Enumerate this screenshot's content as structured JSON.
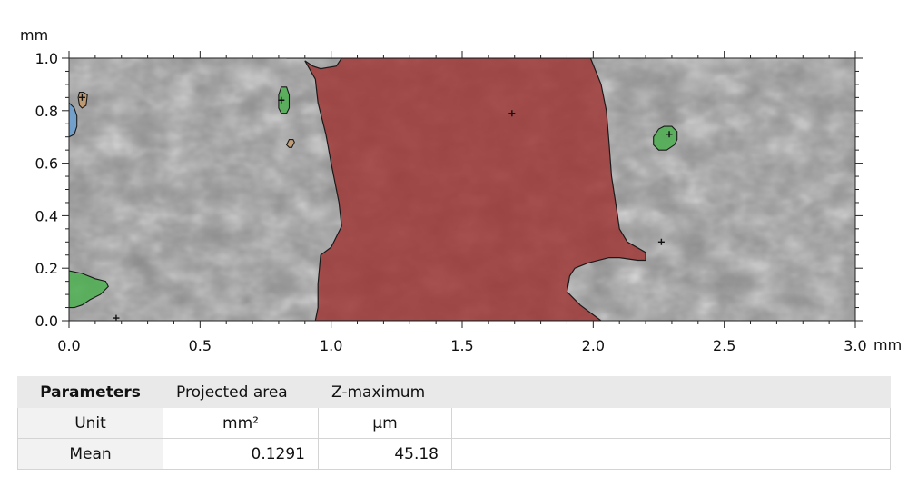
{
  "chart_data": {
    "type": "heatmap",
    "x_unit": "mm",
    "y_unit": "mm",
    "xlim": [
      0.0,
      3.0
    ],
    "ylim": [
      0.0,
      1.0
    ],
    "x_ticks": [
      "0.0",
      "0.5",
      "1.0",
      "1.5",
      "2.0",
      "2.5",
      "3.0"
    ],
    "y_ticks": [
      "0.0",
      "0.2",
      "0.4",
      "0.6",
      "0.8",
      "1.0"
    ],
    "background": "grayscale height map",
    "selected_region": {
      "color": "#9e3535",
      "outline": [
        [
          0.83,
          1.0
        ],
        [
          1.04,
          1.0
        ],
        [
          1.02,
          0.97
        ],
        [
          0.96,
          0.96
        ],
        [
          0.93,
          0.97
        ],
        [
          0.9,
          0.99
        ],
        [
          0.94,
          0.92
        ],
        [
          0.95,
          0.83
        ],
        [
          0.98,
          0.71
        ],
        [
          1.0,
          0.6
        ],
        [
          1.03,
          0.45
        ],
        [
          1.04,
          0.36
        ],
        [
          1.0,
          0.28
        ],
        [
          0.96,
          0.25
        ],
        [
          0.95,
          0.14
        ],
        [
          0.95,
          0.05
        ],
        [
          0.94,
          0.0
        ],
        [
          2.03,
          0.0
        ],
        [
          1.95,
          0.06
        ],
        [
          1.9,
          0.11
        ],
        [
          1.91,
          0.17
        ],
        [
          1.93,
          0.2
        ],
        [
          1.98,
          0.22
        ],
        [
          2.06,
          0.24
        ],
        [
          2.1,
          0.24
        ],
        [
          2.17,
          0.23
        ],
        [
          2.2,
          0.23
        ],
        [
          2.2,
          0.26
        ],
        [
          2.13,
          0.3
        ],
        [
          2.1,
          0.35
        ],
        [
          2.09,
          0.42
        ],
        [
          2.07,
          0.55
        ],
        [
          2.06,
          0.68
        ],
        [
          2.05,
          0.8
        ],
        [
          2.03,
          0.9
        ],
        [
          1.99,
          1.0
        ]
      ],
      "markers": [
        [
          1.69,
          0.79
        ]
      ]
    },
    "islands": [
      {
        "color": "#4caf50",
        "outline": [
          [
            2.23,
            0.7
          ],
          [
            2.25,
            0.73
          ],
          [
            2.27,
            0.74
          ],
          [
            2.3,
            0.74
          ],
          [
            2.32,
            0.72
          ],
          [
            2.32,
            0.69
          ],
          [
            2.31,
            0.67
          ],
          [
            2.28,
            0.65
          ],
          [
            2.25,
            0.65
          ],
          [
            2.23,
            0.67
          ]
        ],
        "markers": [
          [
            2.29,
            0.71
          ]
        ]
      },
      {
        "color": "#4caf50",
        "outline": [
          [
            0.0,
            0.19
          ],
          [
            0.05,
            0.18
          ],
          [
            0.1,
            0.16
          ],
          [
            0.14,
            0.15
          ],
          [
            0.15,
            0.13
          ],
          [
            0.12,
            0.1
          ],
          [
            0.08,
            0.08
          ],
          [
            0.05,
            0.06
          ],
          [
            0.02,
            0.05
          ],
          [
            0.0,
            0.05
          ]
        ],
        "markers": []
      },
      {
        "color": "#4caf50",
        "outline": [
          [
            0.81,
            0.89
          ],
          [
            0.83,
            0.89
          ],
          [
            0.84,
            0.86
          ],
          [
            0.84,
            0.81
          ],
          [
            0.83,
            0.79
          ],
          [
            0.81,
            0.79
          ],
          [
            0.8,
            0.81
          ],
          [
            0.8,
            0.86
          ]
        ],
        "markers": [
          [
            0.81,
            0.84
          ]
        ]
      },
      {
        "color": "#6a9fd1",
        "outline": [
          [
            0.0,
            0.83
          ],
          [
            0.02,
            0.81
          ],
          [
            0.03,
            0.78
          ],
          [
            0.03,
            0.74
          ],
          [
            0.02,
            0.71
          ],
          [
            0.0,
            0.7
          ]
        ],
        "markers": []
      },
      {
        "color": "#c49a6c",
        "outline": [
          [
            0.035,
            0.85
          ],
          [
            0.04,
            0.87
          ],
          [
            0.055,
            0.87
          ],
          [
            0.07,
            0.86
          ],
          [
            0.065,
            0.82
          ],
          [
            0.05,
            0.81
          ],
          [
            0.04,
            0.82
          ]
        ],
        "markers": [
          [
            0.05,
            0.85
          ]
        ]
      },
      {
        "color": "#c49a6c",
        "outline": [
          [
            0.83,
            0.67
          ],
          [
            0.84,
            0.69
          ],
          [
            0.855,
            0.69
          ],
          [
            0.86,
            0.68
          ],
          [
            0.85,
            0.66
          ],
          [
            0.84,
            0.66
          ]
        ],
        "markers": []
      }
    ],
    "stray_markers": [
      [
        2.26,
        0.3
      ],
      [
        0.18,
        0.01
      ]
    ]
  },
  "axis": {
    "x_unit_label": "mm",
    "y_unit_label": "mm"
  },
  "table": {
    "header": [
      "Parameters",
      "Projected area",
      "Z-maximum"
    ],
    "unit_row": [
      "Unit",
      "mm²",
      "µm"
    ],
    "mean_row": [
      "Mean",
      "0.1291",
      "45.18"
    ]
  }
}
